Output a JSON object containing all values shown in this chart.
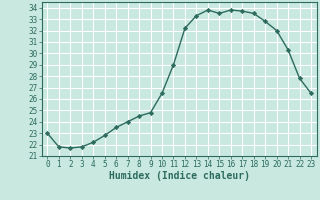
{
  "x": [
    0,
    1,
    2,
    3,
    4,
    5,
    6,
    7,
    8,
    9,
    10,
    11,
    12,
    13,
    14,
    15,
    16,
    17,
    18,
    19,
    20,
    21,
    22,
    23
  ],
  "y": [
    23.0,
    21.8,
    21.7,
    21.8,
    22.2,
    22.8,
    23.5,
    24.0,
    24.5,
    24.8,
    26.5,
    29.0,
    32.2,
    33.3,
    33.8,
    33.5,
    33.8,
    33.7,
    33.5,
    32.8,
    32.0,
    30.3,
    27.8,
    26.5
  ],
  "line_color": "#2d6b5e",
  "marker": "D",
  "markersize": 2.2,
  "linewidth": 1.0,
  "xlabel": "Humidex (Indice chaleur)",
  "xlim": [
    -0.5,
    23.5
  ],
  "ylim": [
    21.0,
    34.5
  ],
  "yticks": [
    21,
    22,
    23,
    24,
    25,
    26,
    27,
    28,
    29,
    30,
    31,
    32,
    33,
    34
  ],
  "xticks": [
    0,
    1,
    2,
    3,
    4,
    5,
    6,
    7,
    8,
    9,
    10,
    11,
    12,
    13,
    14,
    15,
    16,
    17,
    18,
    19,
    20,
    21,
    22,
    23
  ],
  "bg_color": "#c8e8e0",
  "grid_color": "#ffffff",
  "tick_fontsize": 5.5,
  "xlabel_fontsize": 7.0,
  "xlabel_fontweight": "bold",
  "tick_color": "#2d6b5e",
  "spine_color": "#2d6b5e"
}
